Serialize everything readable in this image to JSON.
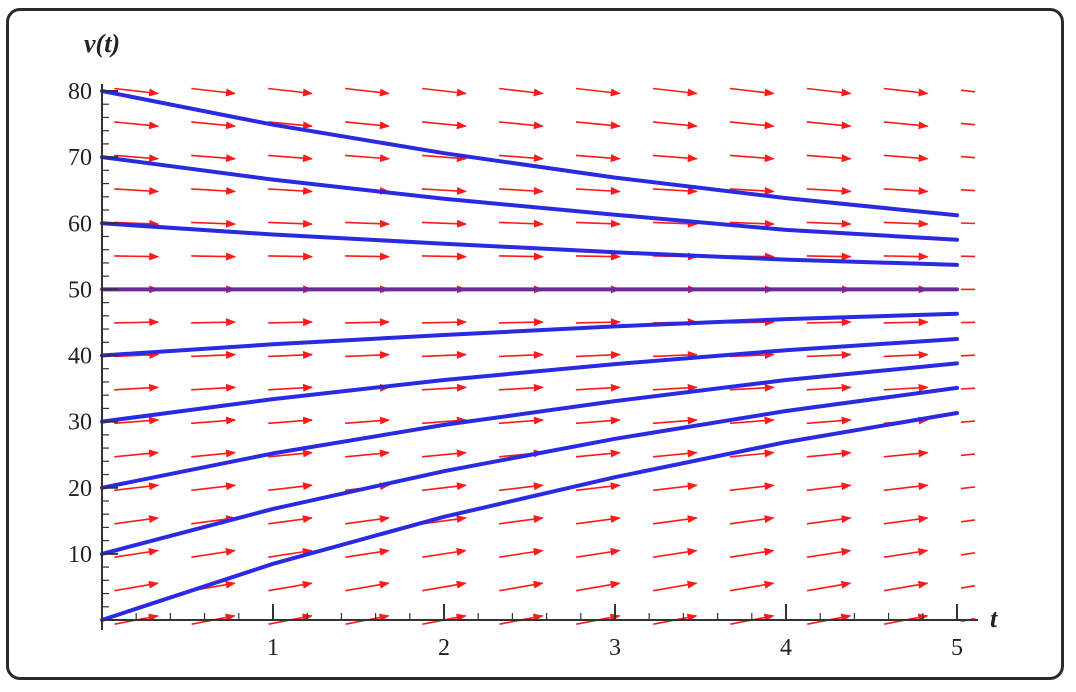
{
  "chart_data": {
    "type": "line",
    "title": "",
    "xlabel": "t",
    "ylabel": "v(t)",
    "xlim": [
      0,
      5
    ],
    "ylim": [
      0,
      80
    ],
    "x_ticks": [
      "1",
      "2",
      "3",
      "4",
      "5"
    ],
    "y_ticks": [
      "10",
      "20",
      "30",
      "40",
      "50",
      "60",
      "70",
      "80"
    ],
    "grid": false,
    "legend": "none",
    "direction_field": {
      "equation_form": "dv/dt = (50 - v)/10",
      "color": "#ff1a1a"
    },
    "solution_color": "#2a2ae0",
    "equilibrium_color": "#6a2a9a",
    "series": [
      {
        "x": [
          0,
          1,
          2,
          3,
          4,
          5
        ],
        "values": [
          80.0,
          74.9,
          70.6,
          66.9,
          63.8,
          61.2
        ]
      },
      {
        "x": [
          0,
          1,
          2,
          3,
          4,
          5
        ],
        "values": [
          70.0,
          66.6,
          63.7,
          61.3,
          59.0,
          57.5
        ]
      },
      {
        "x": [
          0,
          1,
          2,
          3,
          4,
          5
        ],
        "values": [
          60.0,
          58.3,
          56.9,
          55.6,
          54.5,
          53.7
        ]
      },
      {
        "x": [
          0,
          1,
          2,
          3,
          4,
          5
        ],
        "values": [
          50.0,
          50.0,
          50.0,
          50.0,
          50.0,
          50.0
        ]
      },
      {
        "x": [
          0,
          1,
          2,
          3,
          4,
          5
        ],
        "values": [
          40.0,
          41.7,
          43.1,
          44.4,
          45.5,
          46.3
        ]
      },
      {
        "x": [
          0,
          1,
          2,
          3,
          4,
          5
        ],
        "values": [
          30.0,
          33.4,
          36.3,
          38.7,
          40.8,
          42.5
        ]
      },
      {
        "x": [
          0,
          1,
          2,
          3,
          4,
          5
        ],
        "values": [
          20.0,
          25.2,
          29.5,
          33.1,
          36.3,
          38.8
        ]
      },
      {
        "x": [
          0,
          1,
          2,
          3,
          4,
          5
        ],
        "values": [
          10.0,
          16.8,
          22.5,
          27.4,
          31.6,
          35.1
        ]
      },
      {
        "x": [
          0,
          1,
          2,
          3,
          4,
          5
        ],
        "values": [
          0.0,
          8.5,
          15.6,
          21.6,
          26.9,
          31.3
        ]
      }
    ]
  }
}
